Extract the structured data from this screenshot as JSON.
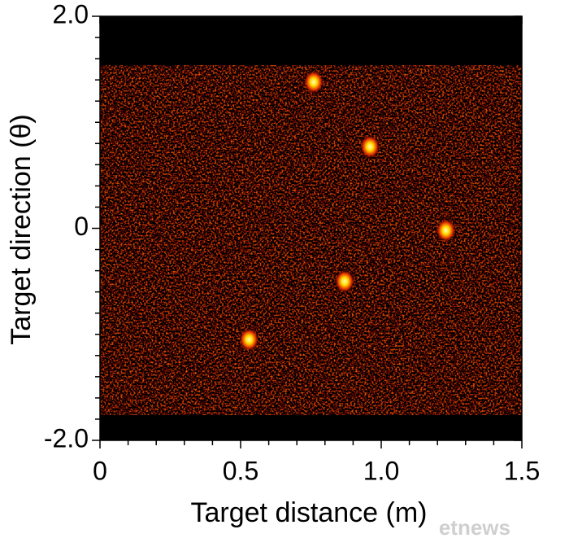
{
  "chart_data": {
    "type": "heatmap",
    "xlabel": "Target distance (m)",
    "ylabel": "Target direction (θ)",
    "x": [
      0.76,
      0.96,
      1.23,
      0.87,
      0.53
    ],
    "y": [
      1.38,
      0.77,
      -0.02,
      -0.5,
      -1.05
    ],
    "xlim": [
      0,
      1.5
    ],
    "ylim": [
      -2,
      2
    ],
    "xticks": [
      0,
      0.5,
      {
        "value": 1,
        "label": "1.0"
      },
      1.5
    ],
    "yticks": [
      {
        "value": -2,
        "label": "-2.0"
      },
      0,
      {
        "value": 2,
        "label": "2.0"
      }
    ],
    "xticks_minor": [
      0.1,
      0.2,
      0.3,
      0.4,
      0.6,
      0.7,
      0.8,
      0.9,
      1.1,
      1.2,
      1.3,
      1.4
    ],
    "yticks_minor": [
      -1.8,
      -1.6,
      -1.4,
      -1.2,
      -1,
      -0.8,
      -0.6,
      -0.4,
      -0.2,
      0.2,
      0.4,
      0.6,
      0.8,
      1,
      1.2,
      1.4,
      1.6,
      1.8
    ],
    "watermark": "etnews"
  }
}
